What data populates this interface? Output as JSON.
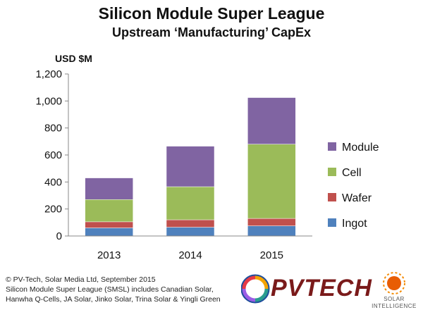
{
  "chart_data": {
    "type": "bar",
    "stacked": true,
    "title": "Silicon Module Super League",
    "subtitle": "Upstream ‘Manufacturing’ CapEx",
    "ylabel": "USD $M",
    "xlabel": "",
    "ylim": [
      0,
      1200
    ],
    "yticks": [
      0,
      200,
      400,
      600,
      800,
      1000,
      1200
    ],
    "ytick_labels": [
      "0",
      "200",
      "400",
      "600",
      "800",
      "1,000",
      "1,200"
    ],
    "categories": [
      "2013",
      "2014",
      "2015"
    ],
    "series": [
      {
        "name": "Ingot",
        "color": "#4f81bd",
        "values": [
          60,
          65,
          75
        ]
      },
      {
        "name": "Wafer",
        "color": "#c0504d",
        "values": [
          45,
          55,
          55
        ]
      },
      {
        "name": "Cell",
        "color": "#9bbb59",
        "values": [
          165,
          245,
          550
        ]
      },
      {
        "name": "Module",
        "color": "#8064a2",
        "values": [
          160,
          300,
          345
        ]
      }
    ],
    "legend_order": [
      "Module",
      "Cell",
      "Wafer",
      "Ingot"
    ],
    "legend_position": "right",
    "grid": false
  },
  "footer": {
    "line1": "© PV-Tech, Solar Media Ltd, September 2015",
    "line2": "Silicon Module Super League (SMSL) includes Canadian Solar,",
    "line3": "Hanwha Q-Cells, JA Solar, Jinko Solar, Trina Solar & Yingli Green"
  },
  "logos": {
    "pvtech": "PVTECH",
    "solar_intelligence_line1": "SOLAR",
    "solar_intelligence_line2": "INTELLIGENCE"
  }
}
